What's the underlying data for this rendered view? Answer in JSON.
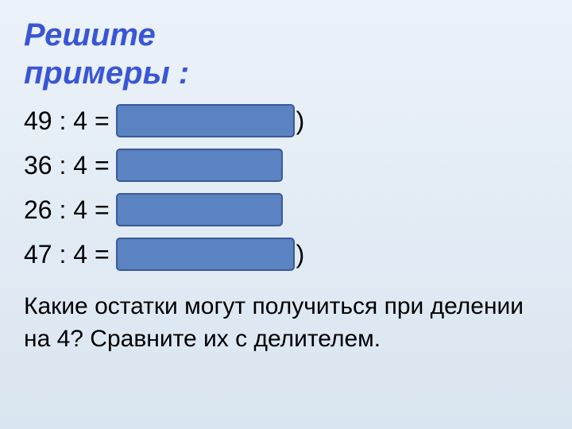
{
  "title_line1": "Решите",
  "title_line2": "примеры :",
  "examples": [
    {
      "prefix": "49 : 4 =",
      "tail": ")",
      "cover_width": 225
    },
    {
      "prefix": "36 : 4 =",
      "tail": "",
      "cover_width": 210
    },
    {
      "prefix": "26 : 4 =",
      "tail": "",
      "cover_width": 210
    },
    {
      "prefix": "47 : 4 =",
      "tail": ")",
      "cover_width": 225
    }
  ],
  "question_line1": "Какие остатки могут получиться при делении",
  "question_line2": " на 4? Сравните их с делителем.",
  "colors": {
    "title": "#3a56d4",
    "background_top": "#ecf2f9",
    "background_bottom": "#d9e5f0",
    "cover_fill": "#5b82c1",
    "cover_border": "#3a5a99",
    "text": "#000000"
  },
  "typography": {
    "title_fontsize": 40,
    "example_fontsize": 32,
    "question_fontsize": 30,
    "title_italic": true,
    "title_bold": true
  }
}
